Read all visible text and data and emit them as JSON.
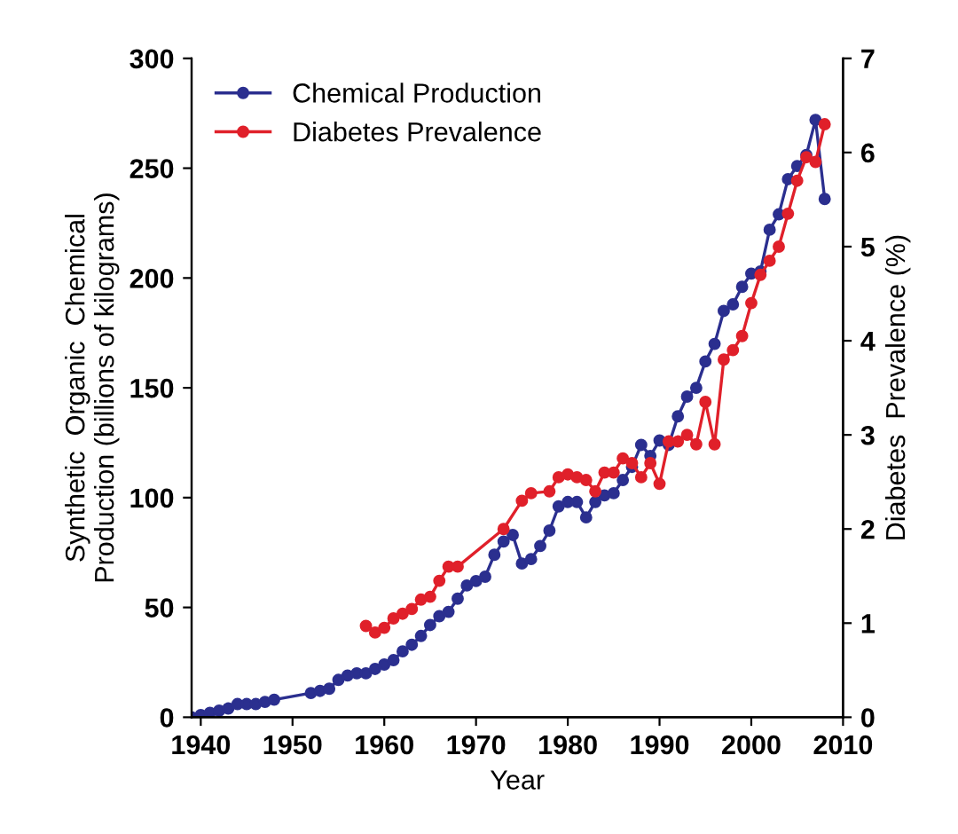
{
  "chart_data": {
    "type": "line",
    "xlabel": "Year",
    "ylabel": "Synthetic  Organic  Chemical\nProduction (billions of kilograms)",
    "y2label": "Diabetes  Prevalence (%)",
    "xlim": [
      1939,
      2010
    ],
    "xticks": [
      1940,
      1950,
      1960,
      1970,
      1980,
      1990,
      2000,
      2010
    ],
    "ylim": [
      0,
      300
    ],
    "yticks": [
      0,
      50,
      100,
      150,
      200,
      250,
      300
    ],
    "y2lim": [
      0,
      7
    ],
    "y2ticks": [
      0,
      1,
      2,
      3,
      4,
      5,
      6,
      7
    ],
    "legend": "top left",
    "grid": false,
    "marker": "circle",
    "line_style": "solid",
    "series": [
      {
        "name": "Chemical Production",
        "color": "#2b2f8f",
        "x": [
          1939,
          1940,
          1941,
          1942,
          1943,
          1944,
          1945,
          1946,
          1947,
          1948,
          1952,
          1953,
          1954,
          1955,
          1956,
          1957,
          1958,
          1959,
          1960,
          1961,
          1962,
          1963,
          1964,
          1965,
          1966,
          1967,
          1968,
          1969,
          1970,
          1971,
          1972,
          1973,
          1974,
          1975,
          1976,
          1977,
          1978,
          1979,
          1980,
          1981,
          1982,
          1983,
          1984,
          1985,
          1986,
          1987,
          1988,
          1989,
          1990,
          1991,
          1992,
          1993,
          1994,
          1995,
          1996,
          1997,
          1998,
          1999,
          2000,
          2001,
          2002,
          2003,
          2004,
          2005,
          2006,
          2007,
          2008
        ],
        "values": [
          0,
          1,
          2,
          3,
          4,
          6,
          6,
          6,
          7,
          8,
          11,
          12,
          13,
          17,
          19,
          20,
          20,
          22,
          24,
          26,
          30,
          33,
          37,
          42,
          46,
          48,
          54,
          60,
          62,
          64,
          74,
          80,
          83,
          70,
          72,
          78,
          85,
          96,
          98,
          98,
          91,
          98,
          101,
          102,
          108,
          114,
          124,
          119,
          126,
          124,
          137,
          146,
          150,
          162,
          170,
          185,
          188,
          196,
          202,
          203,
          222,
          229,
          245,
          251,
          256,
          272,
          236
        ]
      },
      {
        "name": "Diabetes Prevalence",
        "color": "#e0202a",
        "axis": "y2",
        "x": [
          1958,
          1959,
          1960,
          1961,
          1962,
          1963,
          1964,
          1965,
          1966,
          1967,
          1968,
          1973,
          1975,
          1976,
          1978,
          1979,
          1980,
          1981,
          1982,
          1983,
          1984,
          1985,
          1986,
          1987,
          1988,
          1989,
          1990,
          1991,
          1992,
          1993,
          1994,
          1995,
          1996,
          1997,
          1998,
          1999,
          2000,
          2001,
          2002,
          2003,
          2004,
          2005,
          2006,
          2007,
          2008
        ],
        "values": [
          0.97,
          0.9,
          0.95,
          1.05,
          1.1,
          1.15,
          1.25,
          1.28,
          1.45,
          1.6,
          1.6,
          2.0,
          2.3,
          2.38,
          2.4,
          2.55,
          2.58,
          2.55,
          2.52,
          2.4,
          2.6,
          2.6,
          2.75,
          2.7,
          2.55,
          2.7,
          2.48,
          2.93,
          2.93,
          3.0,
          2.9,
          3.35,
          2.9,
          3.8,
          3.9,
          4.05,
          4.4,
          4.7,
          4.85,
          5.0,
          5.35,
          5.7,
          5.95,
          5.9,
          6.3
        ]
      }
    ]
  }
}
